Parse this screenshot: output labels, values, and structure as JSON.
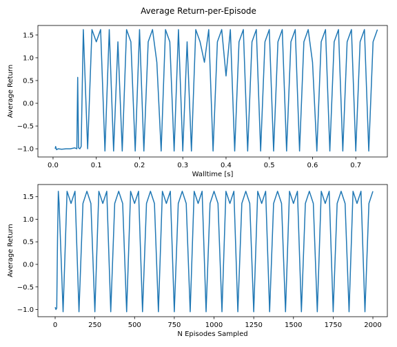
{
  "title": "Average Return-per-Episode",
  "chart_data": [
    {
      "type": "line",
      "xlabel": "Walltime [s]",
      "ylabel": "Average Return",
      "xlim": [
        -0.035,
        0.773
      ],
      "ylim": [
        -1.18,
        1.71
      ],
      "xticks": [
        {
          "value": 0,
          "label": "0.0"
        },
        0.1,
        0.2,
        0.3,
        0.4,
        0.5,
        0.6,
        0.7
      ],
      "yticks": [
        {
          "value": -1,
          "label": "−1.0"
        },
        {
          "value": -0.5,
          "label": "−0.5"
        },
        {
          "value": 0,
          "label": "0.0"
        },
        0.5,
        {
          "value": 1,
          "label": "1.0"
        },
        1.5
      ],
      "series": [
        {
          "color": "#1f77b4",
          "x": [
            0.005,
            0.006,
            0.008,
            0.012,
            0.02,
            0.03,
            0.04,
            0.05,
            0.055,
            0.057,
            0.059,
            0.062,
            0.065,
            0.07,
            0.08,
            0.09,
            0.1,
            0.11,
            0.12,
            0.13,
            0.14,
            0.15,
            0.16,
            0.17,
            0.18,
            0.19,
            0.2,
            0.21,
            0.22,
            0.23,
            0.24,
            0.25,
            0.26,
            0.27,
            0.28,
            0.29,
            0.3,
            0.31,
            0.32,
            0.33,
            0.34,
            0.35,
            0.36,
            0.37,
            0.38,
            0.39,
            0.4,
            0.41,
            0.42,
            0.43,
            0.44,
            0.45,
            0.46,
            0.47,
            0.48,
            0.49,
            0.5,
            0.51,
            0.52,
            0.53,
            0.54,
            0.55,
            0.56,
            0.57,
            0.58,
            0.59,
            0.6,
            0.61,
            0.62,
            0.63,
            0.64,
            0.65,
            0.66,
            0.67,
            0.68,
            0.69,
            0.7,
            0.71,
            0.72,
            0.73,
            0.74,
            0.75
          ],
          "values": [
            -1.0,
            -0.95,
            -1.02,
            -1.0,
            -1.01,
            -1.0,
            -1.0,
            -0.98,
            -1.0,
            0.57,
            -0.98,
            -1.0,
            -0.95,
            1.62,
            -1.0,
            1.62,
            1.35,
            1.62,
            -1.05,
            1.62,
            -1.05,
            1.35,
            -1.05,
            1.62,
            1.35,
            -1.05,
            1.62,
            -1.05,
            1.35,
            1.62,
            0.9,
            -1.05,
            1.62,
            1.35,
            -1.05,
            1.62,
            -1.05,
            1.35,
            -1.05,
            1.62,
            1.35,
            0.9,
            1.62,
            -1.05,
            1.35,
            1.62,
            0.6,
            1.62,
            -1.05,
            1.35,
            1.62,
            -1.05,
            1.35,
            1.62,
            -1.05,
            1.35,
            1.62,
            -1.05,
            1.35,
            1.62,
            -1.05,
            1.35,
            1.62,
            -1.05,
            1.35,
            1.62,
            0.9,
            -1.05,
            1.35,
            1.62,
            -1.05,
            1.35,
            1.62,
            -1.05,
            1.35,
            1.62,
            -1.05,
            1.35,
            1.62,
            -1.05,
            1.35,
            1.62
          ]
        }
      ]
    },
    {
      "type": "line",
      "xlabel": "N Episodes Sampled",
      "ylabel": "Average Return",
      "xlim": [
        -108.5,
        2091
      ],
      "ylim": [
        -1.16,
        1.77
      ],
      "xticks": [
        0,
        250,
        500,
        750,
        1000,
        1250,
        1500,
        1750,
        2000
      ],
      "yticks": [
        {
          "value": -1,
          "label": "−1.0"
        },
        {
          "value": -0.5,
          "label": "−0.5"
        },
        {
          "value": 0,
          "label": "0.0"
        },
        0.5,
        {
          "value": 1,
          "label": "1.0"
        },
        1.5
      ],
      "series": [
        {
          "color": "#1f77b4",
          "x": [
            0,
            5,
            10,
            15,
            20,
            25,
            50,
            75,
            100,
            125,
            150,
            175,
            200,
            225,
            250,
            275,
            300,
            325,
            350,
            375,
            400,
            425,
            450,
            475,
            500,
            525,
            550,
            575,
            600,
            625,
            650,
            675,
            700,
            725,
            750,
            775,
            800,
            825,
            850,
            875,
            900,
            925,
            950,
            975,
            1000,
            1025,
            1050,
            1075,
            1100,
            1125,
            1150,
            1175,
            1200,
            1225,
            1250,
            1275,
            1300,
            1325,
            1350,
            1375,
            1400,
            1425,
            1450,
            1475,
            1500,
            1525,
            1550,
            1575,
            1600,
            1625,
            1650,
            1675,
            1700,
            1725,
            1750,
            1775,
            1800,
            1825,
            1850,
            1875,
            1900,
            1925,
            1950,
            1975,
            2000
          ],
          "values": [
            -0.95,
            -1.0,
            -0.97,
            0.57,
            1.62,
            1.35,
            -1.05,
            1.62,
            1.35,
            1.62,
            -1.05,
            1.35,
            1.62,
            1.35,
            -1.05,
            1.62,
            1.35,
            1.62,
            -1.05,
            1.35,
            1.62,
            1.35,
            -1.05,
            1.62,
            1.35,
            1.62,
            -1.05,
            1.35,
            1.62,
            1.35,
            -1.05,
            1.62,
            1.35,
            1.62,
            -1.05,
            1.35,
            1.62,
            1.35,
            -1.05,
            1.62,
            1.35,
            1.62,
            -1.05,
            1.35,
            1.62,
            1.35,
            -1.05,
            1.62,
            1.35,
            1.62,
            -1.05,
            1.35,
            1.62,
            1.35,
            -1.05,
            1.62,
            1.35,
            1.62,
            -1.05,
            1.35,
            1.62,
            1.35,
            -1.05,
            1.62,
            1.35,
            1.62,
            -1.05,
            1.35,
            1.62,
            1.35,
            -1.05,
            1.62,
            1.35,
            1.62,
            -1.05,
            1.35,
            1.62,
            1.35,
            -1.05,
            1.62,
            1.35,
            1.62,
            -1.05,
            1.35,
            1.62
          ]
        }
      ]
    }
  ]
}
